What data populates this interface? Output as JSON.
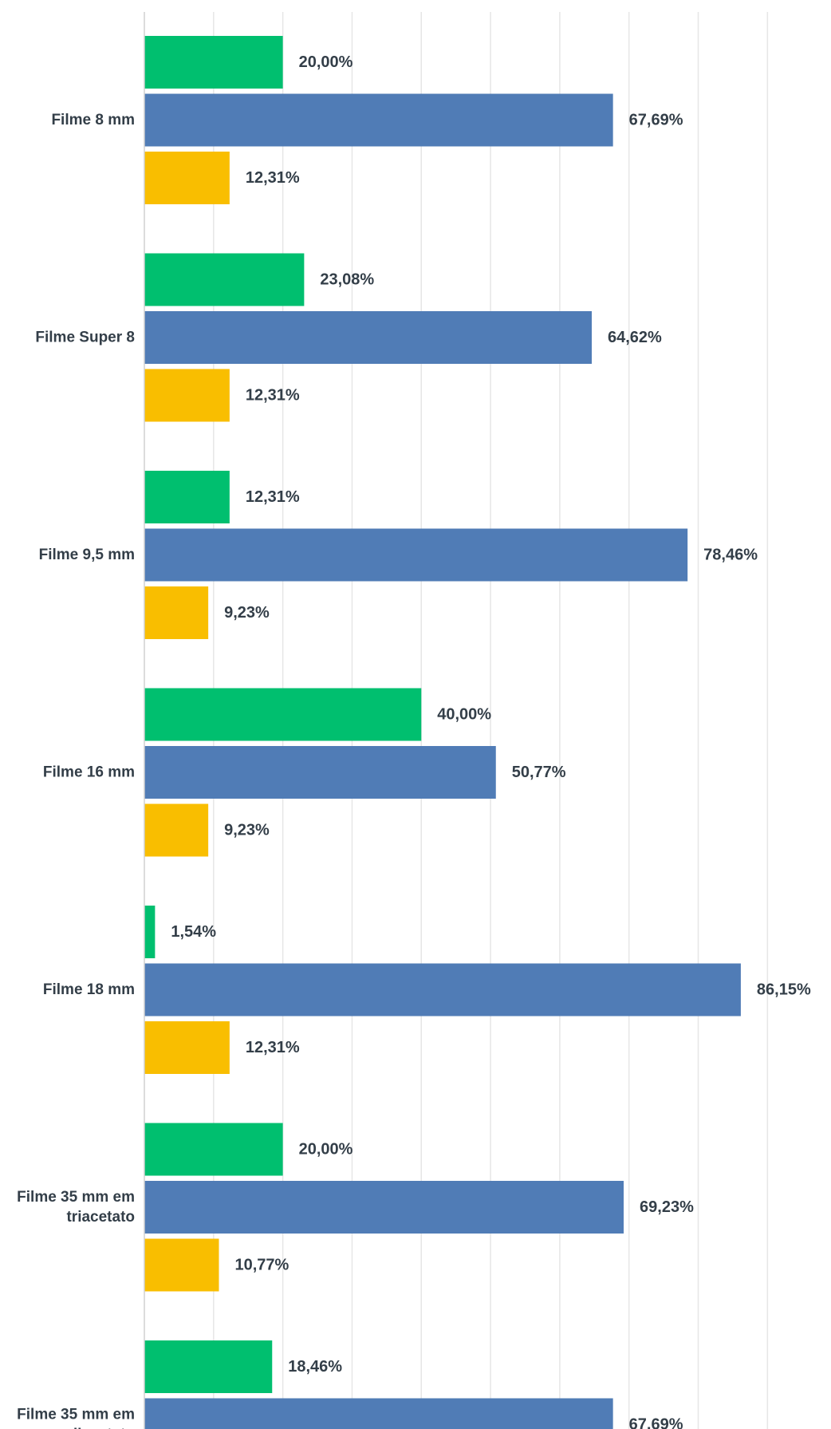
{
  "chart_data": {
    "type": "bar",
    "orientation": "horizontal",
    "categories": [
      [
        "Filme 8 mm"
      ],
      [
        "Filme Super 8"
      ],
      [
        "Filme 9,5 mm"
      ],
      [
        "Filme 16 mm"
      ],
      [
        "Filme 18 mm"
      ],
      [
        "Filme 35 mm em",
        "triacetato"
      ],
      [
        "Filme 35 mm em",
        "diacetato"
      ]
    ],
    "series": [
      {
        "color": "#00bf6f",
        "values": [
          20.0,
          23.08,
          12.31,
          40.0,
          1.54,
          20.0,
          18.46
        ],
        "labels": [
          "20,00%",
          "23,08%",
          "12,31%",
          "40,00%",
          "1,54%",
          "20,00%",
          "18,46%"
        ]
      },
      {
        "color": "#507cb6",
        "values": [
          67.69,
          64.62,
          78.46,
          50.77,
          86.15,
          69.23,
          67.69
        ],
        "labels": [
          "67,69%",
          "64,62%",
          "78,46%",
          "50,77%",
          "86,15%",
          "69,23%",
          "67,69%"
        ]
      },
      {
        "color": "#f9be00",
        "values": [
          12.31,
          12.31,
          9.23,
          9.23,
          12.31,
          10.77,
          null
        ],
        "labels": [
          "12,31%",
          "12,31%",
          "9,23%",
          "9,23%",
          "12,31%",
          "10,77%",
          ""
        ]
      }
    ],
    "xlim": [
      0,
      90
    ],
    "gridlines": true,
    "grid_step": 10,
    "legend": "none"
  }
}
